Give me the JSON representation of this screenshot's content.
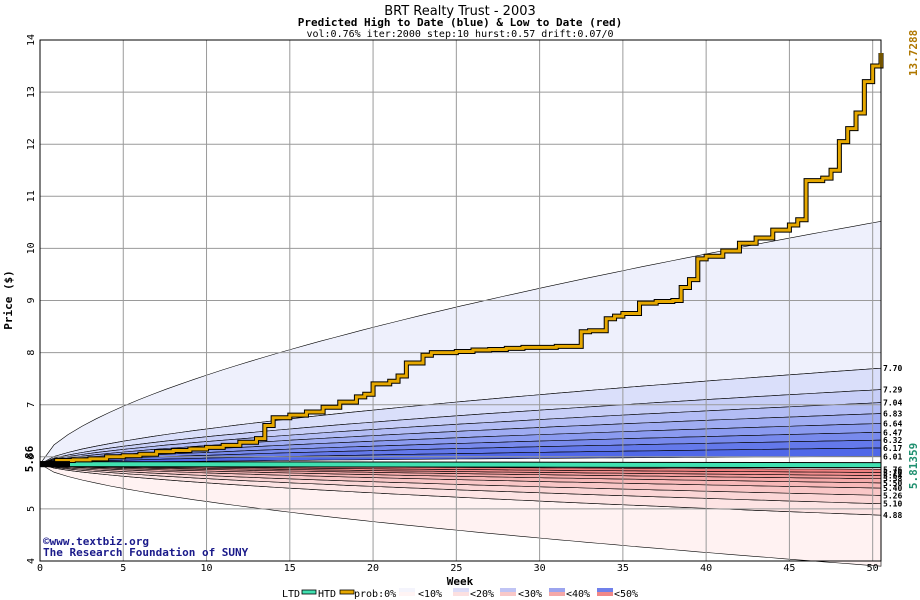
{
  "chart_data": {
    "type": "area",
    "title": "BRT Realty Trust - 2003",
    "subtitle": "Predicted High to Date (blue) &  Low to Date (red)",
    "params": "vol:0.76% iter:2000 step:10 hurst:0.57 drift:0.07/0",
    "xlabel": "Week",
    "ylabel": "Price ($)",
    "xlim": [
      0,
      50.5
    ],
    "ylim": [
      4,
      14
    ],
    "xticks": [
      "0",
      "5",
      "10",
      "15",
      "20",
      "25",
      "30",
      "35",
      "40",
      "45",
      "50"
    ],
    "yticks": [
      "4",
      "5",
      "6",
      "7",
      "8",
      "9",
      "10",
      "11",
      "12",
      "13",
      "14"
    ],
    "grid": true,
    "start_value": 5.86,
    "start_label": "5.86",
    "end_high_label": "13.7288",
    "end_low_label": "5.81359",
    "high_bands_labels": [
      "7.70",
      "7.29",
      "7.04",
      "6.83",
      "6.64",
      "6.47",
      "6.32",
      "6.17",
      "6.01"
    ],
    "low_bands_labels": [
      "5.76",
      "5.70",
      "5.64",
      "5.58",
      "5.50",
      "5.40",
      "5.26",
      "5.10",
      "4.88"
    ],
    "high_bands_end": [
      10.52,
      7.7,
      7.29,
      7.04,
      6.83,
      6.64,
      6.47,
      6.32,
      6.17,
      6.01
    ],
    "low_bands_end": [
      5.76,
      5.7,
      5.64,
      5.58,
      5.5,
      5.4,
      5.26,
      5.1,
      4.88,
      3.9
    ],
    "htd_series": {
      "name": "HTD",
      "x": [
        0,
        1,
        2,
        3,
        4,
        5,
        6,
        7,
        8,
        9,
        10,
        11,
        12,
        13,
        13.5,
        14,
        15,
        16,
        17,
        18,
        19,
        19.5,
        20,
        21,
        21.5,
        22,
        23,
        23.5,
        24,
        25,
        26,
        27,
        28,
        29,
        30,
        31,
        32,
        32.5,
        33,
        34,
        34.5,
        35,
        36,
        37,
        38,
        38.5,
        39,
        39.5,
        40,
        41,
        42,
        43,
        44,
        45,
        45.5,
        46,
        47,
        47.5,
        48,
        48.5,
        49,
        49.5,
        50,
        50.5
      ],
      "values": [
        5.86,
        5.93,
        5.94,
        5.96,
        6.0,
        6.02,
        6.05,
        6.1,
        6.12,
        6.15,
        6.18,
        6.22,
        6.28,
        6.35,
        6.6,
        6.75,
        6.8,
        6.86,
        6.95,
        7.05,
        7.15,
        7.2,
        7.4,
        7.45,
        7.55,
        7.8,
        7.95,
        8.0,
        8.0,
        8.02,
        8.05,
        8.06,
        8.08,
        8.1,
        8.1,
        8.12,
        8.12,
        8.4,
        8.42,
        8.65,
        8.7,
        8.75,
        8.95,
        8.98,
        9.0,
        9.25,
        9.4,
        9.8,
        9.85,
        9.95,
        10.1,
        10.2,
        10.35,
        10.45,
        10.55,
        11.3,
        11.35,
        11.5,
        12.05,
        12.3,
        12.6,
        13.2,
        13.5,
        13.75
      ]
    },
    "ltd_series": {
      "name": "LTD",
      "x": [
        0,
        50.5
      ],
      "values": [
        5.86,
        5.84
      ]
    },
    "legend": [
      "LTD",
      "HTD",
      "prob:0%",
      "<10%",
      "<20%",
      "<30%",
      "<40%",
      "<50%"
    ],
    "colors": {
      "htd": "#e6a800",
      "ltd": "#40e0b0",
      "blue_outer": "#eef0fc",
      "blue_inner": "#5068e8",
      "red_outer": "#fff2f2",
      "red_inner": "#f08080",
      "grid": "#9a9a9a"
    }
  },
  "watermark": {
    "line1": "©www.textbiz.org",
    "line2": "The Research Foundation of SUNY"
  }
}
